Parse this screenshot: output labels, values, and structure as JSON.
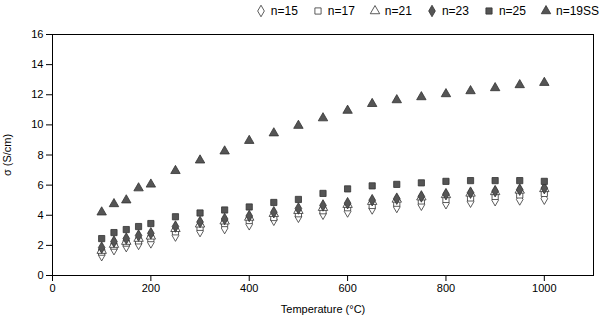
{
  "chart_data": {
    "type": "scatter",
    "xlabel": "Temperature (°C)",
    "ylabel": "σ (S/cm)",
    "xlim": [
      0,
      1100
    ],
    "ylim": [
      0.0,
      16.0
    ],
    "xticks": [
      0,
      200,
      400,
      600,
      800,
      1000
    ],
    "yticks": [
      0.0,
      2.0,
      4.0,
      6.0,
      8.0,
      10.0,
      12.0,
      14.0,
      16.0
    ],
    "x": [
      100,
      125,
      150,
      175,
      200,
      250,
      300,
      350,
      400,
      450,
      500,
      550,
      600,
      650,
      700,
      750,
      800,
      850,
      900,
      950,
      1000
    ],
    "series": [
      {
        "name": "n=15",
        "marker": "diamond",
        "color": "white",
        "values": [
          1.35,
          1.75,
          1.95,
          2.1,
          2.2,
          2.65,
          2.95,
          3.15,
          3.4,
          3.7,
          3.9,
          4.1,
          4.25,
          4.45,
          4.55,
          4.7,
          4.8,
          4.9,
          5.0,
          5.05,
          5.1
        ]
      },
      {
        "name": "n=17",
        "marker": "square",
        "color": "white",
        "values": [
          1.55,
          1.95,
          2.15,
          2.3,
          2.45,
          2.9,
          3.2,
          3.45,
          3.65,
          3.85,
          4.1,
          4.3,
          4.5,
          4.65,
          4.8,
          4.95,
          5.05,
          5.15,
          5.25,
          5.35,
          5.45
        ]
      },
      {
        "name": "n=21",
        "marker": "triangle",
        "color": "white",
        "values": [
          1.65,
          2.05,
          2.25,
          2.45,
          2.6,
          3.1,
          3.4,
          3.6,
          3.85,
          4.1,
          4.3,
          4.5,
          4.7,
          4.9,
          5.05,
          5.2,
          5.35,
          5.45,
          5.55,
          5.65,
          5.75
        ]
      },
      {
        "name": "n=23",
        "marker": "diamond",
        "color": "#555555",
        "values": [
          1.85,
          2.25,
          2.45,
          2.65,
          2.8,
          3.25,
          3.55,
          3.75,
          3.95,
          4.2,
          4.45,
          4.65,
          4.8,
          5.0,
          5.1,
          5.25,
          5.4,
          5.5,
          5.6,
          5.7,
          5.8
        ]
      },
      {
        "name": "n=25",
        "marker": "square",
        "color": "#555555",
        "values": [
          2.45,
          2.85,
          3.05,
          3.25,
          3.45,
          3.9,
          4.15,
          4.35,
          4.55,
          4.85,
          5.05,
          5.45,
          5.75,
          5.95,
          6.05,
          6.15,
          6.25,
          6.3,
          6.3,
          6.3,
          6.25
        ]
      },
      {
        "name": "n=19SS",
        "marker": "triangle",
        "color": "#555555",
        "values": [
          4.2,
          4.75,
          5.0,
          5.8,
          6.05,
          6.95,
          7.65,
          8.25,
          8.95,
          9.45,
          9.95,
          10.45,
          10.95,
          11.4,
          11.65,
          11.85,
          12.05,
          12.25,
          12.45,
          12.65,
          12.8
        ]
      }
    ],
    "legend": "upper right",
    "grid": false
  }
}
